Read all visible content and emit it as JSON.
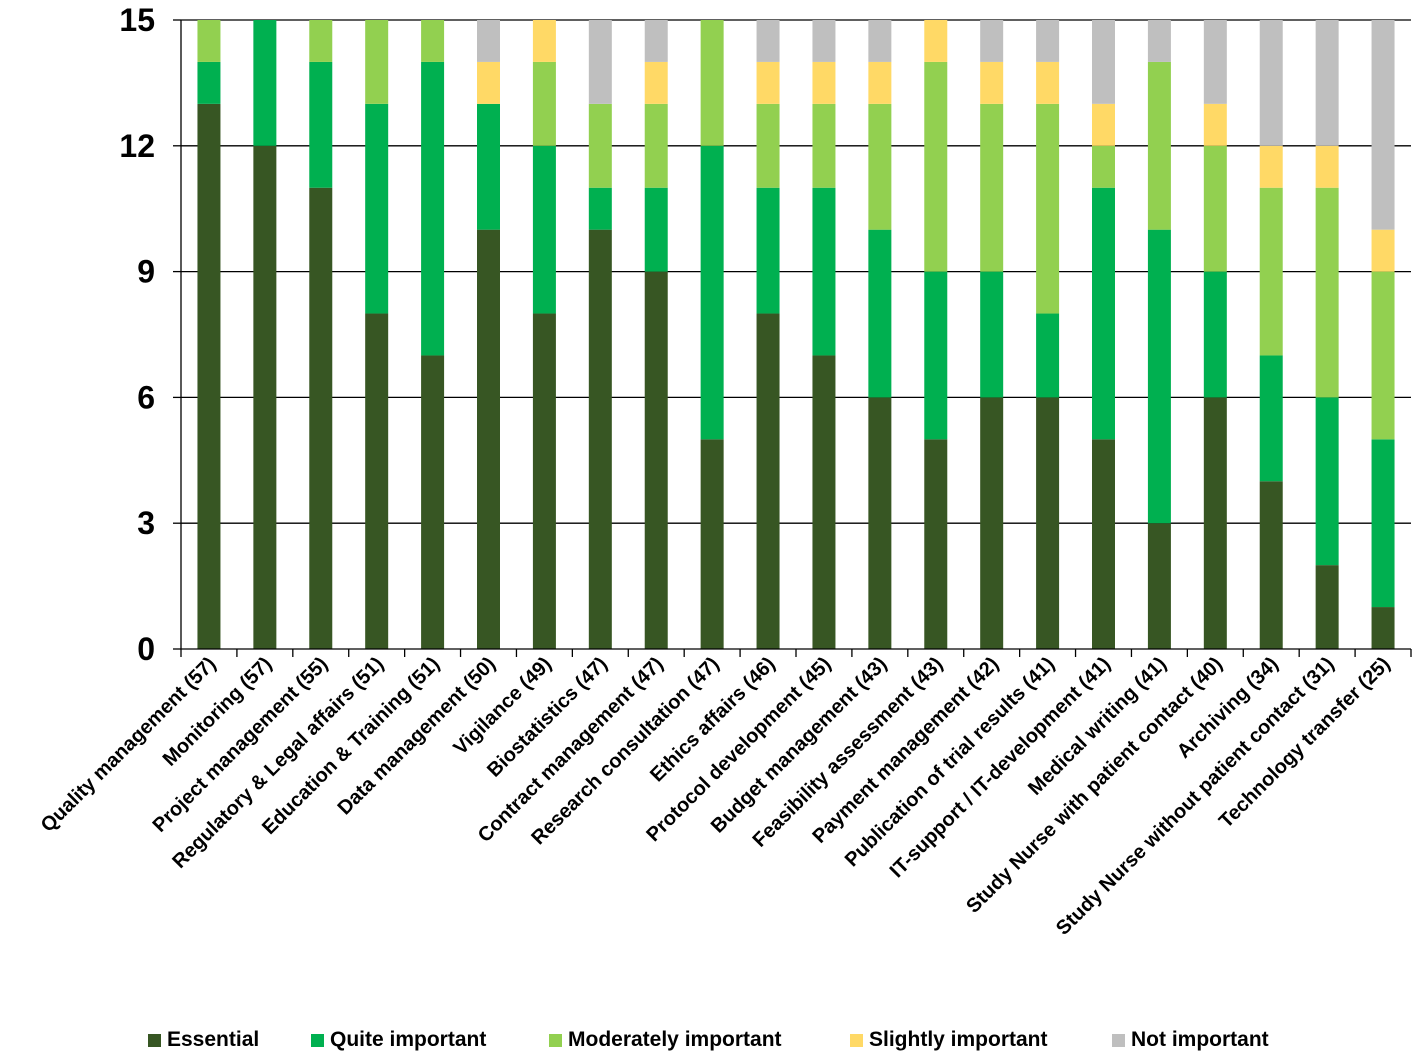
{
  "chart_data": {
    "type": "bar",
    "stacked": true,
    "title": "",
    "xlabel": "",
    "ylabel": "",
    "ylim": [
      0,
      15
    ],
    "yticks": [
      0,
      3,
      6,
      9,
      12,
      15
    ],
    "grid": true,
    "legend_position": "bottom",
    "categories": [
      "Quality management (57)",
      "Monitoring (57)",
      "Project management (55)",
      "Regulatory & Legal affairs (51)",
      "Education & Training (51)",
      "Data management (50)",
      "Vigilance (49)",
      "Biostatistics (47)",
      "Contract management (47)",
      "Research consultation (47)",
      "Ethics affairs (46)",
      "Protocol development (45)",
      "Budget management (43)",
      "Feasibility assessment (43)",
      "Payment management (42)",
      "Publication of trial results (41)",
      "IT-support / IT-development (41)",
      "Medical writing (41)",
      "Study Nurse with patient contact (40)",
      "Archiving (34)",
      "Study Nurse without patient contact (31)",
      "Technology transfer (25)"
    ],
    "series": [
      {
        "name": "Essential",
        "color": "#375623",
        "values": [
          13,
          12,
          11,
          8,
          7,
          10,
          8,
          10,
          9,
          5,
          8,
          7,
          6,
          5,
          6,
          6,
          5,
          3,
          6,
          4,
          2,
          1
        ]
      },
      {
        "name": "Quite important",
        "color": "#00B050",
        "values": [
          1,
          3,
          3,
          5,
          7,
          3,
          4,
          1,
          2,
          7,
          3,
          4,
          4,
          4,
          3,
          2,
          6,
          7,
          3,
          3,
          4,
          4
        ]
      },
      {
        "name": "Moderately important",
        "color": "#92D050",
        "values": [
          1,
          0,
          1,
          2,
          1,
          0,
          2,
          2,
          2,
          3,
          2,
          2,
          3,
          5,
          4,
          5,
          1,
          4,
          3,
          4,
          5,
          4
        ]
      },
      {
        "name": "Slightly important",
        "color": "#FFD966",
        "values": [
          0,
          0,
          0,
          0,
          0,
          1,
          1,
          0,
          1,
          0,
          1,
          1,
          1,
          1,
          1,
          1,
          1,
          0,
          1,
          1,
          1,
          1
        ]
      },
      {
        "name": "Not important",
        "color": "#BFBFBF",
        "values": [
          0,
          0,
          0,
          0,
          0,
          1,
          0,
          2,
          1,
          0,
          1,
          1,
          1,
          0,
          1,
          1,
          2,
          1,
          2,
          3,
          3,
          5
        ]
      }
    ]
  }
}
